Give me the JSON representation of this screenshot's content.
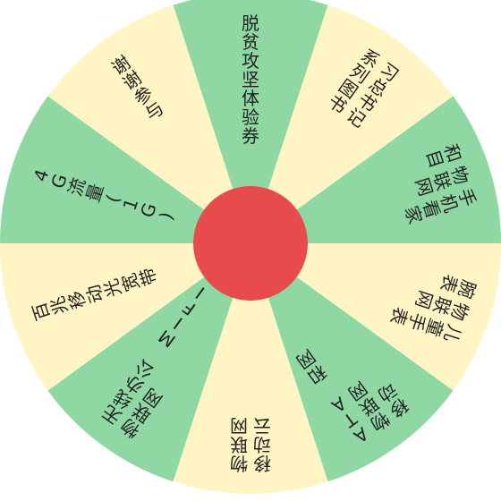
{
  "wheel": {
    "colors": {
      "green": "#8fd8a4",
      "yellow": "#fff5c4",
      "center": "#e84b4b",
      "text": "#222222"
    },
    "segments": [
      {
        "lines": [
          "脱贫攻坚体验券"
        ],
        "color": "green"
      },
      {
        "lines": [
          "习总书记",
          "系列图书"
        ],
        "color": "yellow"
      },
      {
        "lines": [
          "手机看家",
          "物联网",
          "和目"
        ],
        "color": "green"
      },
      {
        "lines": [
          "儿童手表",
          "物联网",
          "腕表"
        ],
        "color": "yellow"
      },
      {
        "lines": [
          "ATA 和网",
          "物联网",
          "移动"
        ],
        "color": "green"
      },
      {
        "lines": [
          "物联网",
          "移动云"
        ],
        "color": "yellow"
      },
      {
        "lines": [
          "无线办公 MIFI",
          "物联网"
        ],
        "color": "green"
      },
      {
        "lines": [
          "百兆移动光宽带"
        ],
        "color": "yellow"
      },
      {
        "lines": [
          "4G流量(1G)"
        ],
        "color": "green"
      },
      {
        "lines": [
          "谢谢参与"
        ],
        "color": "yellow"
      }
    ]
  }
}
